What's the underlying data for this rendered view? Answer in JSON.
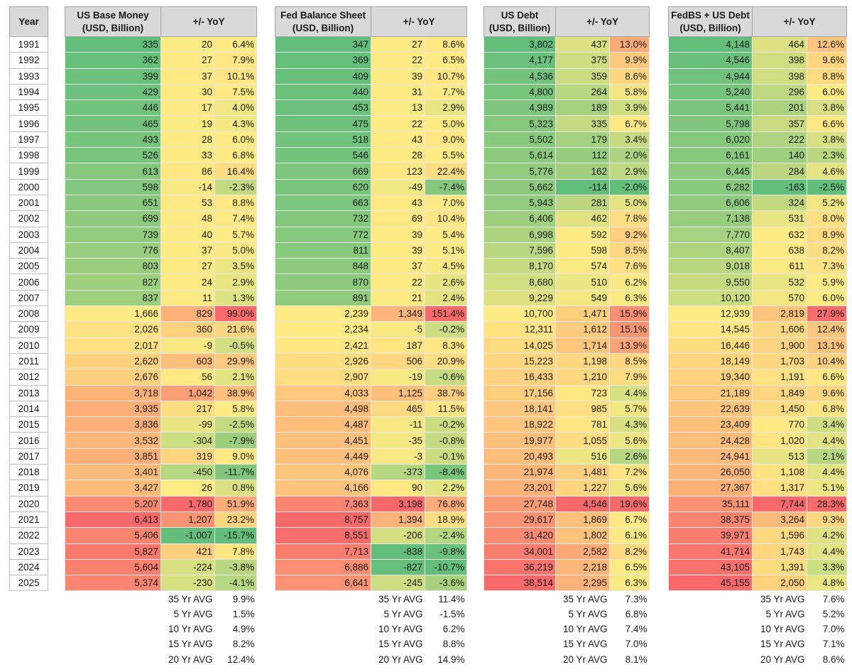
{
  "headers": {
    "year": "Year",
    "yoy": "+/- YoY"
  },
  "years": [
    "1991",
    "1992",
    "1993",
    "1994",
    "1995",
    "1996",
    "1997",
    "1998",
    "1999",
    "2000",
    "2001",
    "2002",
    "2003",
    "2004",
    "2005",
    "2006",
    "2007",
    "2008",
    "2009",
    "2010",
    "2011",
    "2012",
    "2013",
    "2014",
    "2015",
    "2016",
    "2017",
    "2018",
    "2019",
    "2020",
    "2021",
    "2022",
    "2023",
    "2024",
    "2025"
  ],
  "avg_labels": [
    "35 Yr AVG",
    "5 Yr AVG",
    "10 Yr AVG",
    "15 Yr AVG",
    "20 Yr AVG"
  ],
  "panels": [
    {
      "title": [
        "US Base Money",
        "(USD, Billion)"
      ],
      "value": [
        335,
        362,
        399,
        429,
        446,
        465,
        493,
        526,
        613,
        598,
        651,
        699,
        739,
        776,
        803,
        827,
        837,
        1666,
        2026,
        2017,
        2620,
        2676,
        3718,
        3935,
        3836,
        3532,
        3851,
        3401,
        3427,
        5207,
        6413,
        5406,
        5827,
        5604,
        5374
      ],
      "change": [
        20,
        27,
        37,
        30,
        17,
        19,
        28,
        33,
        86,
        -14,
        53,
        48,
        40,
        37,
        27,
        24,
        11,
        829,
        360,
        -9,
        603,
        56,
        1042,
        217,
        -99,
        -304,
        319,
        -450,
        26,
        1780,
        1207,
        -1007,
        421,
        -224,
        -230
      ],
      "pct": [
        6.4,
        7.9,
        10.1,
        7.5,
        4.0,
        4.3,
        6.0,
        6.8,
        16.4,
        -2.3,
        8.8,
        7.4,
        5.7,
        5.0,
        3.5,
        2.9,
        1.3,
        99.0,
        21.6,
        -0.5,
        29.9,
        2.1,
        38.9,
        5.8,
        -2.5,
        -7.9,
        9.0,
        -11.7,
        0.8,
        51.9,
        23.2,
        -15.7,
        7.8,
        -3.8,
        -4.1
      ],
      "avgs": [
        "9.9%",
        "1.5%",
        "4.9%",
        "8.2%",
        "12.4%"
      ]
    },
    {
      "title": [
        "Fed Balance Sheet",
        "(USD, Billion)"
      ],
      "value": [
        347,
        369,
        409,
        440,
        453,
        475,
        518,
        546,
        669,
        620,
        663,
        732,
        772,
        811,
        848,
        870,
        891,
        2239,
        2234,
        2421,
        2926,
        2907,
        4033,
        4498,
        4487,
        4451,
        4449,
        4076,
        4166,
        7363,
        8757,
        8551,
        7713,
        6886,
        6641
      ],
      "change": [
        27,
        22,
        39,
        31,
        13,
        22,
        43,
        28,
        123,
        -49,
        43,
        69,
        39,
        39,
        37,
        22,
        21,
        1349,
        -5,
        187,
        506,
        -19,
        1125,
        465,
        -11,
        -35,
        -3,
        -373,
        90,
        3198,
        1394,
        -206,
        -838,
        -827,
        -245
      ],
      "pct": [
        8.6,
        6.5,
        10.7,
        7.7,
        2.9,
        5.0,
        9.0,
        5.5,
        22.4,
        -7.4,
        7.0,
        10.4,
        5.4,
        5.1,
        4.5,
        2.6,
        2.4,
        151.4,
        -0.2,
        8.3,
        20.9,
        -0.6,
        38.7,
        11.5,
        -0.2,
        -0.8,
        -0.1,
        -8.4,
        2.2,
        76.8,
        18.9,
        -2.4,
        -9.8,
        -10.7,
        -3.6
      ],
      "avgs": [
        "11.4%",
        "-1.5%",
        "6.2%",
        "8.8%",
        "14.9%"
      ]
    },
    {
      "title": [
        "US Debt",
        "(USD, Billion)"
      ],
      "value": [
        3802,
        4177,
        4536,
        4800,
        4989,
        5323,
        5502,
        5614,
        5776,
        5662,
        5943,
        6406,
        6998,
        7596,
        8170,
        8680,
        9229,
        10700,
        12311,
        14025,
        15223,
        16433,
        17156,
        18141,
        18922,
        19977,
        20493,
        21974,
        23201,
        27748,
        29617,
        31420,
        34001,
        36219,
        38514
      ],
      "change": [
        437,
        375,
        359,
        264,
        189,
        335,
        179,
        112,
        162,
        -114,
        281,
        462,
        592,
        598,
        574,
        510,
        549,
        1471,
        1612,
        1714,
        1198,
        1210,
        723,
        985,
        781,
        1055,
        516,
        1481,
        1227,
        4546,
        1869,
        1802,
        2582,
        2218,
        2295
      ],
      "pct": [
        13.0,
        9.9,
        8.6,
        5.8,
        3.9,
        6.7,
        3.4,
        2.0,
        2.9,
        -2.0,
        5.0,
        7.8,
        9.2,
        8.5,
        7.6,
        6.2,
        6.3,
        15.9,
        15.1,
        13.9,
        8.5,
        7.9,
        4.4,
        5.7,
        4.3,
        5.6,
        2.6,
        7.2,
        5.6,
        19.6,
        6.7,
        6.1,
        8.2,
        6.5,
        6.3
      ],
      "avgs": [
        "7.3%",
        "6.8%",
        "7.4%",
        "7.0%",
        "8.1%"
      ]
    },
    {
      "title": [
        "FedBS + US Debt",
        "(USD, Billion)"
      ],
      "value": [
        4148,
        4546,
        4944,
        5240,
        5441,
        5798,
        6020,
        6161,
        6445,
        6282,
        6606,
        7138,
        7770,
        8407,
        9018,
        9550,
        10120,
        12939,
        14545,
        16446,
        18149,
        19340,
        21189,
        22639,
        23409,
        24428,
        24941,
        26050,
        27367,
        35111,
        38375,
        39971,
        41714,
        43105,
        45155
      ],
      "change": [
        464,
        398,
        398,
        296,
        201,
        357,
        222,
        140,
        284,
        -163,
        324,
        531,
        632,
        638,
        611,
        532,
        570,
        2819,
        1606,
        1900,
        1703,
        1191,
        1849,
        1450,
        770,
        1020,
        513,
        1108,
        1317,
        7744,
        3264,
        1596,
        1743,
        1391,
        2050
      ],
      "pct": [
        12.6,
        9.6,
        8.8,
        6.0,
        3.8,
        6.6,
        3.8,
        2.3,
        4.6,
        -2.5,
        5.2,
        8.0,
        8.9,
        8.2,
        7.3,
        5.9,
        6.0,
        27.9,
        12.4,
        13.1,
        10.4,
        6.6,
        9.6,
        6.8,
        3.4,
        4.4,
        2.1,
        4.4,
        5.1,
        28.3,
        9.3,
        4.2,
        4.4,
        3.3,
        4.8
      ],
      "avgs": [
        "7.6%",
        "5.2%",
        "7.0%",
        "7.1%",
        "8.6%"
      ]
    }
  ]
}
